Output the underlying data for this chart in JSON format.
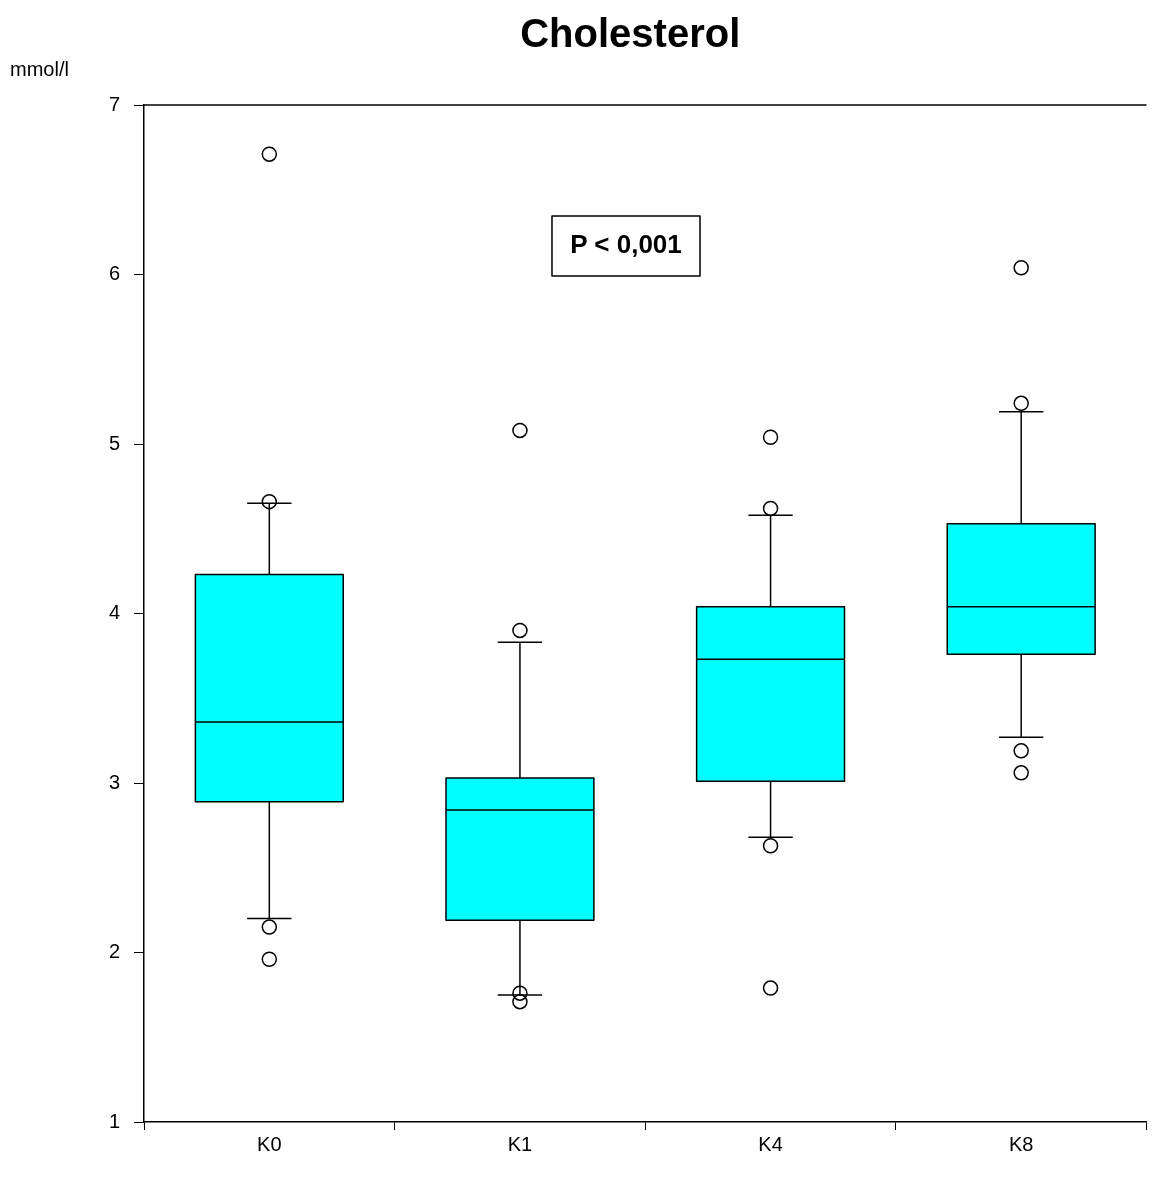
{
  "chart_data": {
    "type": "box",
    "title": "Cholesterol",
    "ylabel": "mmol/l",
    "annotations": [
      "P < 0,001"
    ],
    "categories": [
      "K0",
      "K1",
      "K4",
      "K8"
    ],
    "color": "#00ffff",
    "ylim": [
      1,
      7
    ],
    "yticks": [
      1,
      2,
      3,
      4,
      5,
      6,
      7
    ],
    "boxes": [
      {
        "low": 2.2,
        "q1": 2.89,
        "median": 3.36,
        "q3": 4.23,
        "high": 4.65,
        "outliers": [
          6.71,
          4.66,
          2.15,
          1.96
        ]
      },
      {
        "low": 1.75,
        "q1": 2.19,
        "median": 2.84,
        "q3": 3.03,
        "high": 3.83,
        "outliers": [
          5.08,
          3.9,
          1.76,
          1.71
        ]
      },
      {
        "low": 2.68,
        "q1": 3.01,
        "median": 3.73,
        "q3": 4.04,
        "high": 4.58,
        "outliers": [
          5.04,
          4.62,
          2.63,
          1.79
        ]
      },
      {
        "low": 3.27,
        "q1": 3.76,
        "median": 4.04,
        "q3": 4.53,
        "high": 5.19,
        "outliers": [
          6.04,
          5.24,
          3.19,
          3.06
        ]
      }
    ]
  }
}
